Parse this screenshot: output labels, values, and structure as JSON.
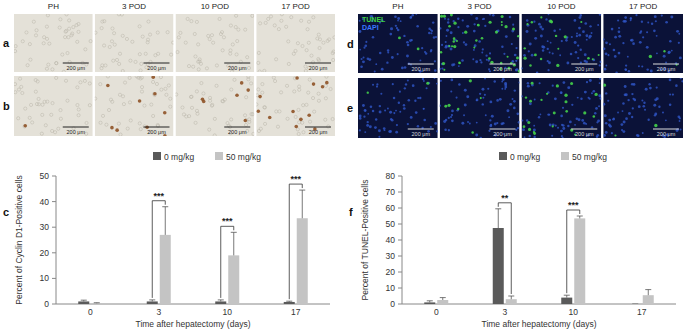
{
  "image_grids": [
    {
      "columns": [
        "PH",
        "3 POD",
        "10 POD",
        "17 POD"
      ],
      "rows": [
        {
          "label": "a",
          "scale_bar": "200 μm"
        },
        {
          "label": "b",
          "scale_bar": "200 μm"
        }
      ]
    },
    {
      "columns": [
        "PH",
        "3 POD",
        "10 POD",
        "17 POD"
      ],
      "stains": [
        {
          "name": "TUNEL",
          "color": "#3fd23f"
        },
        {
          "name": "DAPI",
          "color": "#3a78ff"
        }
      ],
      "rows": [
        {
          "label": "d",
          "scale_bar": "200 μm"
        },
        {
          "label": "e",
          "scale_bar": "200 μm"
        }
      ]
    }
  ],
  "chart_data": [
    {
      "type": "bar",
      "panel_label": "c",
      "x_label": "Time after hepatectomy (days)",
      "y_label": "Percent of Cyclin D1-Positive cells",
      "categories": [
        "0",
        "3",
        "10",
        "17"
      ],
      "series": [
        {
          "name": "0 mg/kg",
          "color": "#5a5a5a",
          "values": [
            1,
            1,
            1,
            0.8
          ],
          "errors": [
            0.5,
            0.6,
            0.6,
            0.3
          ]
        },
        {
          "name": "50 mg/kg",
          "color": "#c4c4c4",
          "values": [
            0.3,
            27,
            19,
            33.5
          ],
          "errors": [
            0.2,
            11,
            9,
            11
          ]
        }
      ],
      "annotations": [
        {
          "text": "***",
          "category": "3"
        },
        {
          "text": "***",
          "category": "10"
        },
        {
          "text": "***",
          "category": "17"
        }
      ],
      "ylim": [
        0,
        50
      ],
      "yticks": [
        0,
        10,
        20,
        30,
        40,
        50
      ],
      "legend": "top"
    },
    {
      "type": "bar",
      "panel_label": "f",
      "x_label": "Time after hepatectomy (days)",
      "y_label": "Percent of TUNEL-Positive cells",
      "categories": [
        "0",
        "3",
        "10",
        "17"
      ],
      "series": [
        {
          "name": "0 mg/kg",
          "color": "#5a5a5a",
          "values": [
            1,
            47.5,
            4,
            0
          ],
          "errors": [
            1,
            12,
            1.5,
            0
          ]
        },
        {
          "name": "50 mg/kg",
          "color": "#c4c4c4",
          "values": [
            2.5,
            3,
            53.5,
            5.5
          ],
          "errors": [
            1.5,
            2,
            1.5,
            3.5
          ]
        }
      ],
      "annotations": [
        {
          "text": "**",
          "category": "3"
        },
        {
          "text": "***",
          "category": "10"
        }
      ],
      "ylim": [
        0,
        80
      ],
      "yticks": [
        0,
        10,
        20,
        30,
        40,
        50,
        60,
        70,
        80
      ],
      "legend": "top"
    }
  ]
}
